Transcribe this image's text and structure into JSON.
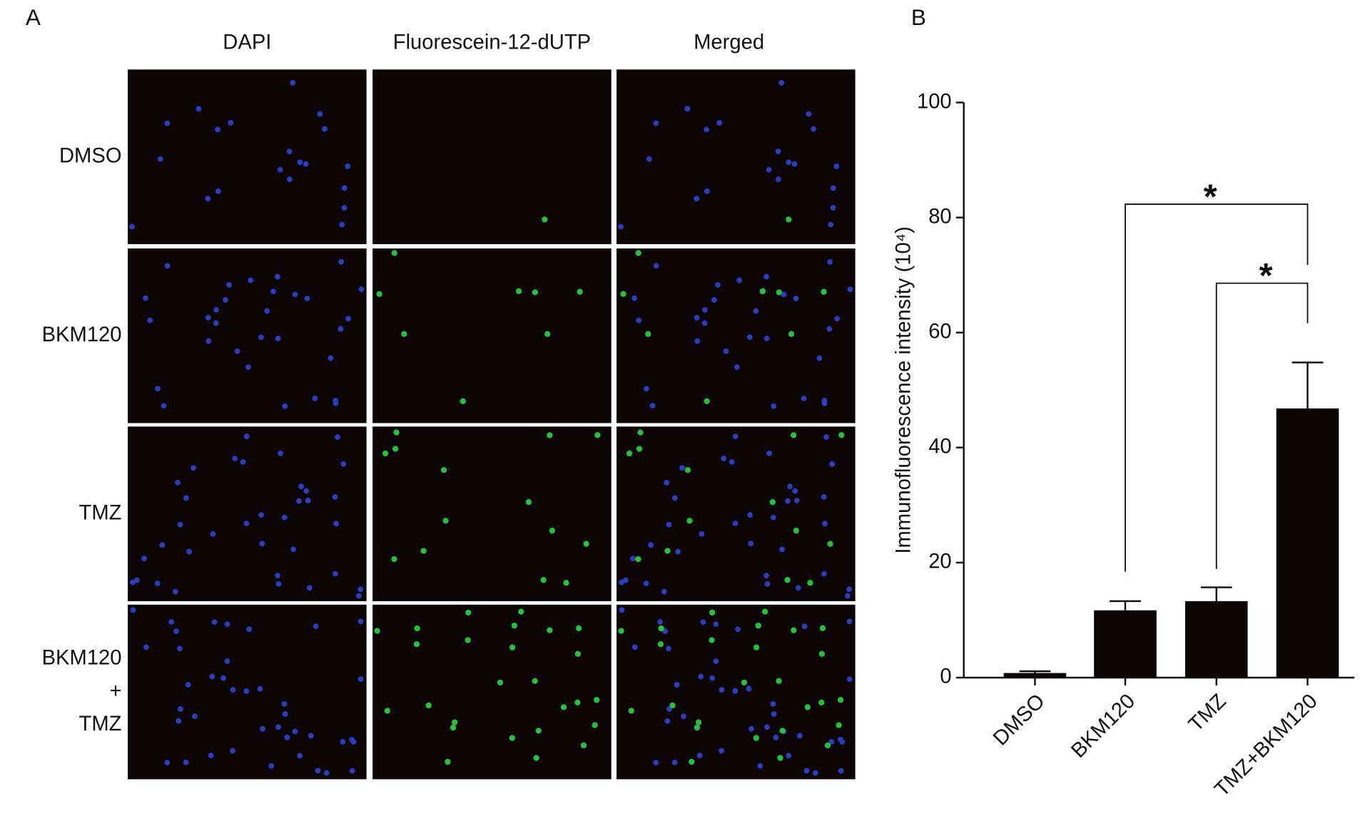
{
  "panel_a": {
    "label": "A",
    "columns": [
      "DAPI",
      "Fluorescein-12-dUTP",
      "Merged"
    ],
    "rows": [
      [
        "DMSO"
      ],
      [
        "BKM120"
      ],
      [
        "TMZ"
      ],
      [
        "BKM120",
        "+",
        "TMZ"
      ]
    ]
  },
  "chart_data": {
    "type": "bar",
    "panel_label": "B",
    "y_label": "Immunofluorescence intensity (10⁴)",
    "categories": [
      "DMSO",
      "BKM120",
      "TMZ",
      "TMZ+BKM120"
    ],
    "values": [
      0.8,
      11.7,
      13.3,
      46.8
    ],
    "errors": [
      0.3,
      1.6,
      2.4,
      8.0
    ],
    "color": "#0a0405",
    "ylim": [
      0,
      100
    ],
    "yticks": [
      0,
      20,
      40,
      60,
      80,
      100
    ],
    "grid": false,
    "annotations": [
      "*",
      "*"
    ]
  }
}
